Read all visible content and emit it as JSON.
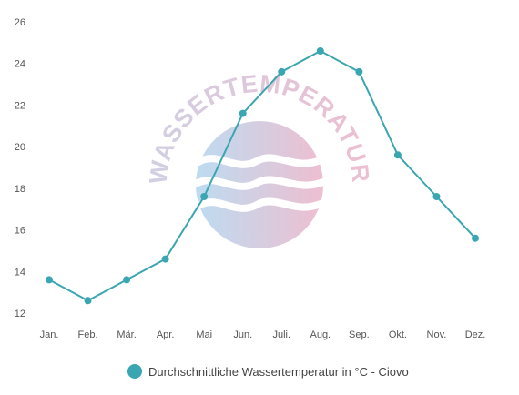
{
  "chart_data": {
    "type": "line",
    "categories": [
      "Jan.",
      "Feb.",
      "Mär.",
      "Apr.",
      "Mai",
      "Jun.",
      "Juli.",
      "Aug.",
      "Sep.",
      "Okt.",
      "Nov.",
      "Dez."
    ],
    "series": [
      {
        "name": "Durchschnittliche Wassertemperatur in °C - Ciovo",
        "values": [
          13.6,
          12.6,
          13.6,
          14.6,
          17.6,
          21.6,
          23.6,
          24.6,
          23.6,
          19.6,
          17.6,
          15.6
        ],
        "color": "#3aa6b1"
      }
    ],
    "ylim": [
      12,
      26
    ],
    "yticks": [
      12,
      14,
      16,
      18,
      20,
      22,
      24,
      26
    ],
    "grid": false,
    "legend": "bottom"
  },
  "watermark": {
    "text": "WASSERTEMPERATUR.ORG",
    "color_left": "#a8d0ec",
    "color_right": "#e8a9c1",
    "icon": "wave-logo-icon"
  }
}
